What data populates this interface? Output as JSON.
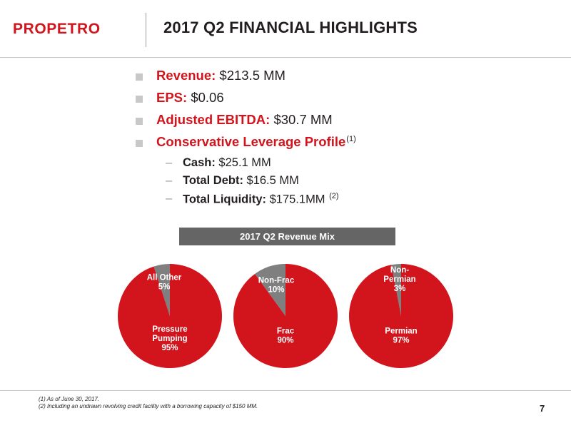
{
  "header": {
    "logo_text": "PROPETRO",
    "title": "2017 Q2 FINANCIAL HIGHLIGHTS"
  },
  "bullets": [
    {
      "label": "Revenue:",
      "value": " $213.5 MM",
      "sup": ""
    },
    {
      "label": "EPS:",
      "value": " $0.06",
      "sup": ""
    },
    {
      "label": "Adjusted EBITDA:",
      "value": " $30.7 MM",
      "sup": ""
    },
    {
      "label": "Conservative Leverage Profile",
      "value": "",
      "sup": "(1)"
    }
  ],
  "sub_bullets": [
    {
      "dash": "–",
      "label": "Cash:",
      "value": " $25.1 MM",
      "sup": ""
    },
    {
      "dash": "–",
      "label": "Total Debt:",
      "value": " $16.5 MM",
      "sup": ""
    },
    {
      "dash": "–",
      "label": "Total Liquidity:",
      "value": " $175.1MM ",
      "sup": "(2)"
    }
  ],
  "revenue_mix_title": "2017 Q2 Revenue Mix",
  "colors": {
    "primary": "#d2151d",
    "secondary": "#7f7f7f",
    "bar": "#656565"
  },
  "chart_data": [
    {
      "type": "pie",
      "slices": [
        {
          "label": "Pressure Pumping",
          "value": 95,
          "value_label": "95%",
          "color": "#d2151d"
        },
        {
          "label": "All Other",
          "value": 5,
          "value_label": "5%",
          "color": "#7f7f7f"
        }
      ]
    },
    {
      "type": "pie",
      "slices": [
        {
          "label": "Frac",
          "value": 90,
          "value_label": "90%",
          "color": "#d2151d"
        },
        {
          "label": "Non-Frac",
          "value": 10,
          "value_label": "10%",
          "color": "#7f7f7f"
        }
      ]
    },
    {
      "type": "pie",
      "slices": [
        {
          "label": "Permian",
          "value": 97,
          "value_label": "97%",
          "color": "#d2151d"
        },
        {
          "label": "Non-Permian",
          "value": 3,
          "value_label": "3%",
          "color": "#7f7f7f"
        }
      ]
    }
  ],
  "footnotes": [
    "(1)  As of June 30, 2017.",
    "(2)  Including an undrawn revolving credit facility with a borrowing capacity of $150 MM."
  ],
  "page_number": "7"
}
